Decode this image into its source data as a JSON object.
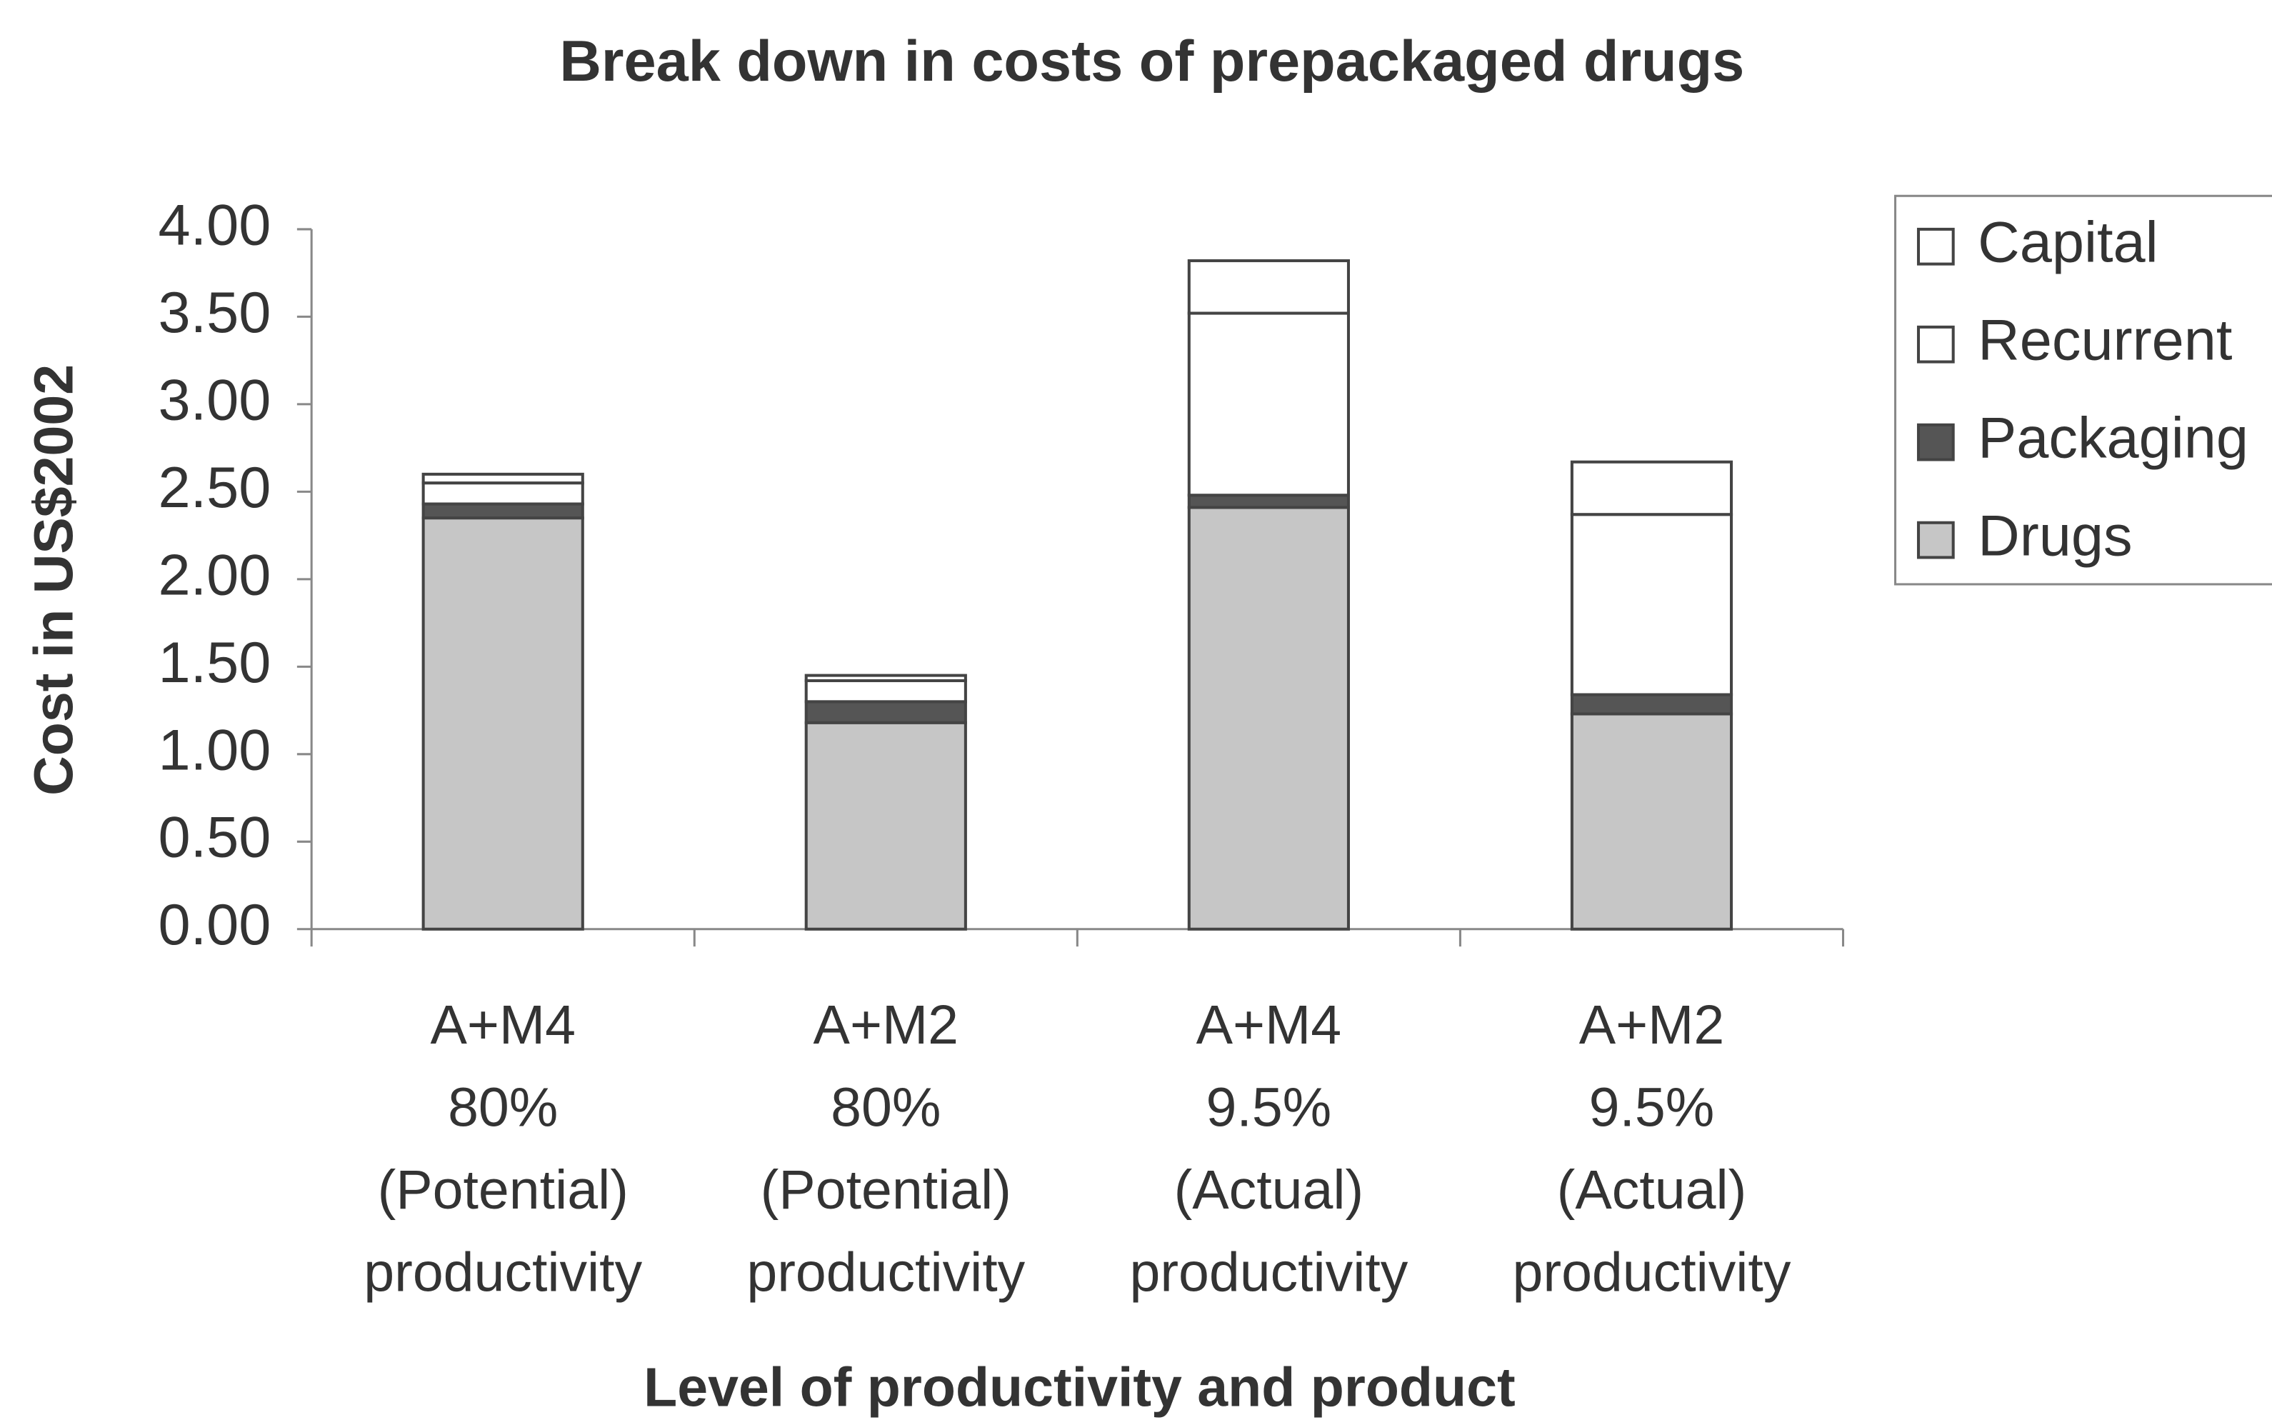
{
  "chart_data": {
    "type": "stacked_bar",
    "title": "Break down in costs of prepackaged drugs",
    "x_label": "Level of productivity and product",
    "y_label": "Cost in US$2002",
    "categories": [
      "A+M4\n80%\n(Potential)\nproductivity",
      "A+M2\n80%\n(Potential)\nproductivity",
      "A+M4\n9.5%\n(Actual)\nproductivity",
      "A+M2\n9.5%\n(Actual)\nproductivity"
    ],
    "series": [
      {
        "name": "Drugs",
        "color": "#c6c6c6",
        "values": [
          2.35,
          1.18,
          2.41,
          1.23
        ]
      },
      {
        "name": "Packaging",
        "color": "#555555",
        "values": [
          0.08,
          0.12,
          0.07,
          0.11
        ]
      },
      {
        "name": "Recurrent",
        "color": "#ffffff",
        "values": [
          0.12,
          0.12,
          1.04,
          1.03
        ]
      },
      {
        "name": "Capital",
        "color": "#ffffff",
        "values": [
          0.05,
          0.03,
          0.3,
          0.3
        ]
      }
    ],
    "ylim": [
      0,
      4
    ],
    "yticks": [
      {
        "value": 0,
        "label": "0.00"
      },
      {
        "value": 0.5,
        "label": "0.50"
      },
      {
        "value": 1,
        "label": "1.00"
      },
      {
        "value": 1.5,
        "label": "1.50"
      },
      {
        "value": 2,
        "label": "2.00"
      },
      {
        "value": 2.5,
        "label": "2.50"
      },
      {
        "value": 3,
        "label": "3.00"
      },
      {
        "value": 3.5,
        "label": "3.50"
      },
      {
        "value": 4,
        "label": "4.00"
      }
    ],
    "grid": false,
    "legend": "right"
  }
}
